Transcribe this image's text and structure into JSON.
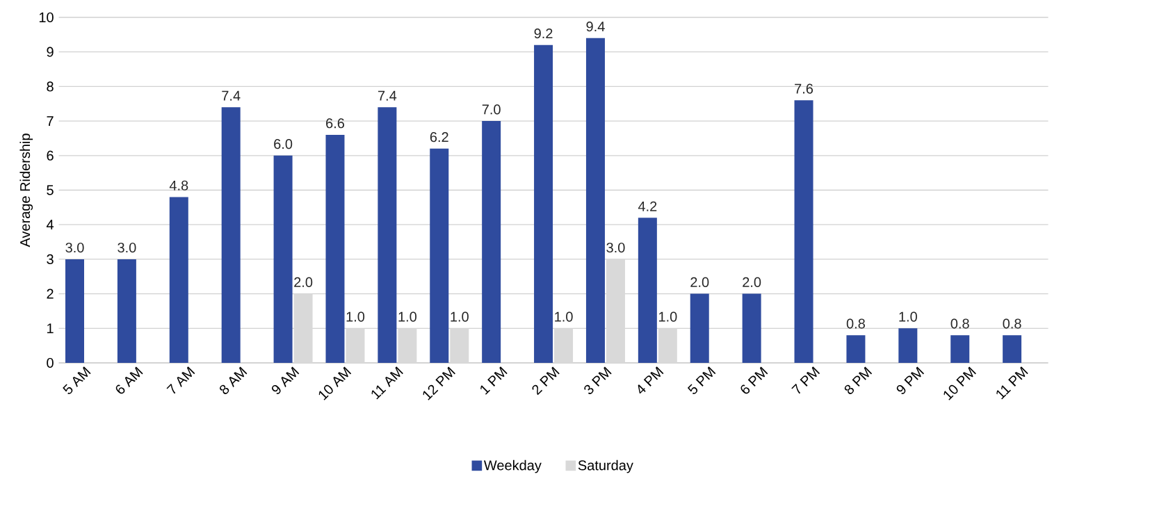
{
  "chart_data": {
    "type": "bar",
    "ylabel": "Average Ridership",
    "categories": [
      "5 AM",
      "6 AM",
      "7 AM",
      "8 AM",
      "9 AM",
      "10 AM",
      "11 AM",
      "12 PM",
      "1 PM",
      "2 PM",
      "3 PM",
      "4 PM",
      "5 PM",
      "6 PM",
      "7 PM",
      "8 PM",
      "9 PM",
      "10 PM",
      "11 PM"
    ],
    "series": [
      {
        "name": "Weekday",
        "color": "#2f4b9e",
        "values": [
          3.0,
          3.0,
          4.8,
          7.4,
          6.0,
          6.6,
          7.4,
          6.2,
          7.0,
          9.2,
          9.4,
          4.2,
          2.0,
          2.0,
          7.6,
          0.8,
          1.0,
          0.8,
          0.8
        ],
        "value_labels": [
          "3.0",
          "3.0",
          "4.8",
          "7.4",
          "6.0",
          "6.6",
          "7.4",
          "6.2",
          "7.0",
          "9.2",
          "9.4",
          "4.2",
          "2.0",
          "2.0",
          "7.6",
          "0.8",
          "1.0",
          "0.8",
          "0.8"
        ]
      },
      {
        "name": "Saturday",
        "color": "#d9d9d9",
        "values": [
          null,
          null,
          null,
          null,
          2.0,
          1.0,
          1.0,
          1.0,
          null,
          1.0,
          3.0,
          1.0,
          null,
          null,
          null,
          null,
          null,
          null,
          null
        ],
        "value_labels": [
          null,
          null,
          null,
          null,
          "2.0",
          "1.0",
          "1.0",
          "1.0",
          null,
          "1.0",
          "3.0",
          "1.0",
          null,
          null,
          null,
          null,
          null,
          null,
          null
        ]
      }
    ],
    "ylim": [
      0,
      10
    ],
    "yticks": [
      0,
      1,
      2,
      3,
      4,
      5,
      6,
      7,
      8,
      9,
      10
    ],
    "grid": "y",
    "legend": "bottom"
  }
}
